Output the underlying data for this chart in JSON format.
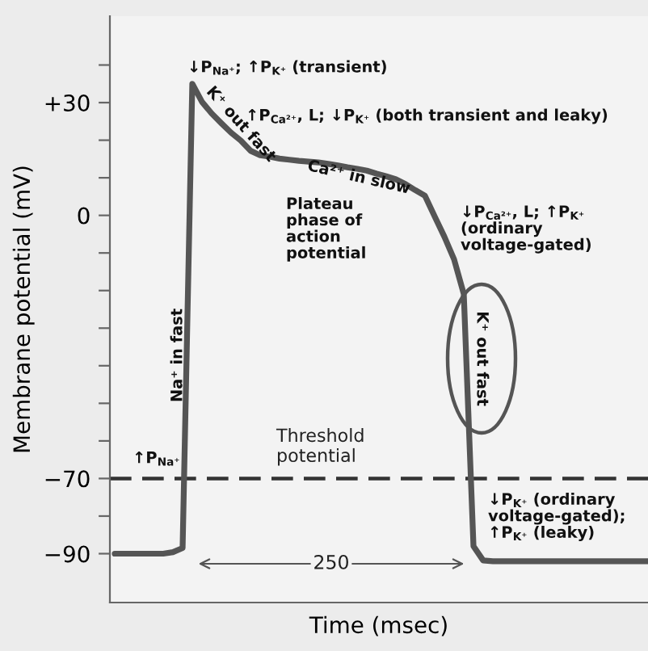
{
  "chart_data": {
    "type": "line",
    "xlabel": "Time (msec)",
    "ylabel": "Membrane potential (mV)",
    "categories": [
      null,
      null,
      null,
      null,
      null,
      null,
      null,
      null,
      null,
      null,
      null,
      null,
      null,
      null,
      null,
      null,
      null,
      null,
      null,
      null,
      null,
      null,
      null,
      null,
      null,
      null,
      null,
      null,
      null,
      null,
      null,
      null,
      null,
      null,
      null,
      null,
      null,
      null,
      null,
      null,
      null,
      null,
      null,
      null,
      null,
      null,
      null,
      null,
      null,
      null,
      null,
      null,
      null,
      null,
      null,
      null
    ],
    "series": [
      {
        "color": "#555555",
        "values": [
          -90,
          -90,
          -90,
          -90,
          -90,
          -90,
          -89.6,
          -88.5,
          35,
          30.2,
          27.1,
          24.5,
          22,
          19.9,
          17.2,
          16,
          15.6,
          15.1,
          14.8,
          14.5,
          14.3,
          14.1,
          13.7,
          13.3,
          12.8,
          12.4,
          11.9,
          11.1,
          10.4,
          9.6,
          8.3,
          6.7,
          5.2,
          -0.3,
          -5.7,
          -11.7,
          -20.9,
          -88,
          -91.8,
          -92,
          -92,
          -92,
          -92,
          -92,
          -92,
          -92,
          -92,
          -92,
          -92,
          -92,
          -92,
          -92,
          -92,
          -92,
          -92,
          -92
        ]
      }
    ],
    "ylim": [
      -103,
      53
    ],
    "yticks": [
      {
        "value": 40,
        "label": null
      },
      {
        "value": 30,
        "label": "+30"
      },
      {
        "value": 20,
        "label": null
      },
      {
        "value": 10,
        "label": null
      },
      {
        "value": 0,
        "label": "0"
      },
      {
        "value": -10,
        "label": null
      },
      {
        "value": -20,
        "label": null
      },
      {
        "value": -30,
        "label": null
      },
      {
        "value": -40,
        "label": null
      },
      {
        "value": -50,
        "label": null
      },
      {
        "value": -60,
        "label": null
      },
      {
        "value": -70,
        "label": "−70"
      },
      {
        "value": -80,
        "label": null
      },
      {
        "value": -90,
        "label": "−90"
      }
    ],
    "tick_labels": "y",
    "grid": false,
    "marker": "none",
    "line_style": "solid",
    "ref_lines": [
      {
        "axis": "y",
        "value": -70,
        "label": "Threshold\npotential",
        "color": "#333333",
        "line_style": "dashed"
      }
    ],
    "annotations": [
      "↓P$_{Na⁺}$; ↑P$_{K⁺}$ (transient)",
      "↑P$_{Ca²⁺}$, L; ↓P$_{K⁺}$ (both transient and leaky)",
      "K⁺ out fast",
      "Ca²⁺ in slow",
      "Plateau\nphase of\naction\npotential",
      "↓P$_{Ca²⁺}$, L; ↑P$_{K⁺}$\n(ordinary\nvoltage-gated)",
      "Na⁺ in fast",
      "K⁺ out fast",
      "↑P$_{Na⁺}$",
      "↓P$_{K⁺}$ (ordinary\nvoltage-gated);\n↑P$_{K⁺}$ (leaky)",
      "250"
    ]
  }
}
